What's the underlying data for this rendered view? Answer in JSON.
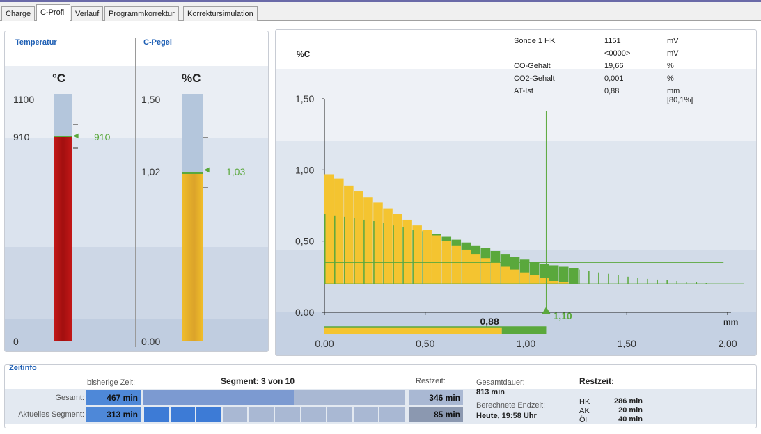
{
  "tabs": [
    "Charge",
    "C-Profil",
    "Verlauf",
    "Programmkorrektur",
    "Korrektursimulation"
  ],
  "active_tab": 1,
  "temperature": {
    "header": "Temperatur",
    "unit": "°C",
    "ticks": [
      "1100",
      "910",
      "0"
    ],
    "actual": 910,
    "setpoint": "910",
    "max": 1100
  },
  "carbon": {
    "header": "C-Pegel",
    "unit": "%C",
    "ticks": [
      "1,50",
      "1,02",
      "0.00"
    ],
    "actual": 1.02,
    "setpoint": "1,03",
    "max": 1.5
  },
  "chart_info": {
    "rows": [
      {
        "label": "Sonde 1 HK",
        "value": "1151",
        "unit": "mV"
      },
      {
        "label": "",
        "value": "<0000>",
        "unit": "mV"
      },
      {
        "label": "CO-Gehalt",
        "value": "19,66",
        "unit": "%"
      },
      {
        "label": "CO2-Gehalt",
        "value": "0,001",
        "unit": "%"
      },
      {
        "label": "AT-Ist",
        "value": "0,88",
        "unit": "mm"
      }
    ],
    "extra": "[80,1%]"
  },
  "chart_data": {
    "type": "bar",
    "ylabel": "%C",
    "xlabel": "mm",
    "ylim": [
      0,
      1.5
    ],
    "xlim": [
      0,
      2.0
    ],
    "y_ticks": [
      "1,50",
      "1,00",
      "0,50",
      "0.00"
    ],
    "x_ticks": [
      "0,00",
      "0,50",
      "1,00",
      "1,50",
      "2,00"
    ],
    "x_tick_values": [
      0,
      0.5,
      1.0,
      1.5,
      2.0
    ],
    "y_tick_values": [
      1.5,
      1.0,
      0.5,
      0.0
    ],
    "series": [
      {
        "name": "",
        "color": "#f4c430",
        "values": [
          0.97,
          0.94,
          0.89,
          0.85,
          0.81,
          0.77,
          0.73,
          0.69,
          0.65,
          0.61,
          0.58,
          0.54,
          0.5,
          0.47,
          0.44,
          0.41,
          0.38,
          0.35,
          0.32,
          0.3,
          0.28,
          0.26,
          0.24,
          0.22,
          0.21,
          0.2
        ]
      },
      {
        "name": "",
        "color": "#5aa83c",
        "values": [
          0.69,
          0.68,
          0.67,
          0.66,
          0.65,
          0.64,
          0.63,
          0.61,
          0.6,
          0.58,
          0.57,
          0.55,
          0.53,
          0.51,
          0.49,
          0.47,
          0.45,
          0.43,
          0.41,
          0.39,
          0.37,
          0.35,
          0.34,
          0.33,
          0.32,
          0.31,
          0.3,
          0.29,
          0.28,
          0.27,
          0.26,
          0.25,
          0.24,
          0.235,
          0.23,
          0.225,
          0.22,
          0.215,
          0.21,
          0.205,
          0.2
        ]
      }
    ],
    "bar_width": 0.0485,
    "baseline": 0.2,
    "ref_line": 0.35,
    "ref_line_end": 1.98,
    "base_line_end": 2.08,
    "cursor_x": 1.1,
    "actual_label": "0,88",
    "cursor_label": "1,10",
    "progress_yellow": 0.88,
    "progress_green": 1.1
  },
  "zeitinfo": {
    "title": "Zeitinfo",
    "col_elapsed": "bisherige Zeit:",
    "segment_label": "Segment: 3 von 10",
    "col_remaining": "Restzeit:",
    "rows": [
      {
        "label": "Gesamt:",
        "elapsed": "467 min",
        "remaining": "346 min",
        "progress": 0.575
      },
      {
        "label": "Aktuelles Segment:",
        "elapsed": "313 min",
        "remaining": "85 min",
        "segments_done": 3,
        "segments_total": 10
      }
    ],
    "gesamtdauer_label": "Gesamtdauer:",
    "gesamtdauer_value": "813 min",
    "endzeit_label": "Berechnete Endzeit:",
    "endzeit_value": "Heute, 19:58 Uhr",
    "restzeit_title": "Restzeit:",
    "restzeit": [
      {
        "label": "HK",
        "value": "286 min"
      },
      {
        "label": "AK",
        "value": "20 min"
      },
      {
        "label": "Öl",
        "value": "40 min"
      }
    ]
  }
}
